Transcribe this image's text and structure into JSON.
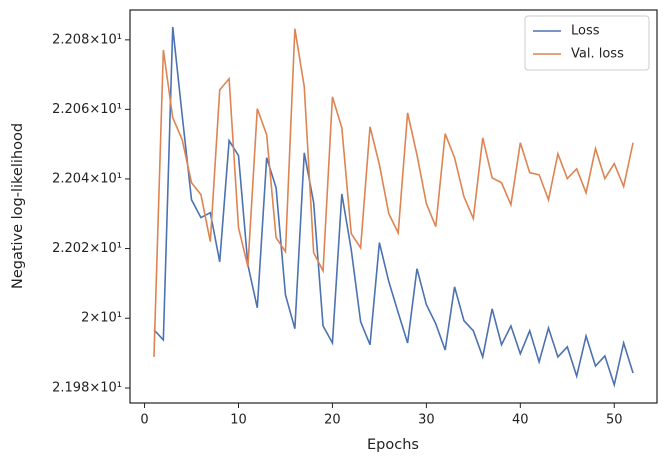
{
  "chart_data": {
    "type": "line",
    "xlabel": "Epochs",
    "ylabel": "Negative log-likelihood",
    "x": [
      1,
      2,
      3,
      4,
      5,
      6,
      7,
      8,
      9,
      10,
      11,
      12,
      13,
      14,
      15,
      16,
      17,
      18,
      19,
      20,
      21,
      22,
      23,
      24,
      25,
      26,
      27,
      28,
      29,
      30,
      31,
      32,
      33,
      34,
      35,
      36,
      37,
      38,
      39,
      40,
      41,
      42,
      43,
      44,
      45,
      46,
      47,
      48,
      49,
      50,
      51,
      52
    ],
    "series": [
      {
        "name": "Loss",
        "color": "#4c72b0",
        "values": [
          21.9967,
          21.9938,
          22.0837,
          22.0584,
          22.034,
          22.0289,
          22.0303,
          22.0162,
          22.051,
          22.0467,
          22.0153,
          22.003,
          22.0461,
          22.0375,
          22.0067,
          21.997,
          22.0475,
          22.0332,
          21.9978,
          21.9929,
          22.0357,
          22.0197,
          21.999,
          21.9924,
          22.0217,
          22.0105,
          22.0016,
          21.9929,
          22.0142,
          22.0039,
          21.9984,
          21.9909,
          22.009,
          21.9993,
          21.9964,
          21.9889,
          22.0027,
          21.9924,
          21.9978,
          21.9898,
          21.9964,
          21.9875,
          21.9972,
          21.9889,
          21.9918,
          21.9834,
          21.9949,
          21.9863,
          21.9892,
          21.9809,
          21.9929,
          21.9843
        ]
      },
      {
        "name": "Val. loss",
        "color": "#dd8452",
        "values": [
          21.9889,
          22.0771,
          22.0576,
          22.0513,
          22.0389,
          22.0355,
          22.022,
          22.0656,
          22.0688,
          22.026,
          22.0148,
          22.0602,
          22.0527,
          22.0231,
          22.0191,
          22.0832,
          22.0665,
          22.0188,
          22.0136,
          22.0636,
          22.0547,
          22.0243,
          22.0202,
          22.055,
          22.0441,
          22.03,
          22.0245,
          22.059,
          22.0469,
          22.0329,
          22.0263,
          22.053,
          22.0461,
          22.0349,
          22.0286,
          22.0518,
          22.0403,
          22.0389,
          22.0326,
          22.0504,
          22.0418,
          22.0412,
          22.034,
          22.0472,
          22.0401,
          22.0429,
          22.036,
          22.0487,
          22.0401,
          22.0444,
          22.0378,
          22.0504
        ]
      }
    ],
    "xlim": [
      -1.55,
      54.55
    ],
    "xticks": [
      0,
      10,
      20,
      30,
      40,
      50
    ],
    "ylim": [
      21.9757,
      22.0886
    ],
    "log_y": true,
    "yticks": [
      {
        "value": 21.98,
        "label": "2.198×10¹"
      },
      {
        "value": 22.0,
        "label": "2×10¹"
      },
      {
        "value": 22.02,
        "label": "2.202×10¹"
      },
      {
        "value": 22.04,
        "label": "2.204×10¹"
      },
      {
        "value": 22.06,
        "label": "2.206×10¹"
      },
      {
        "value": 22.08,
        "label": "2.208×10¹"
      }
    ],
    "grid": false,
    "legend": "upper right"
  }
}
